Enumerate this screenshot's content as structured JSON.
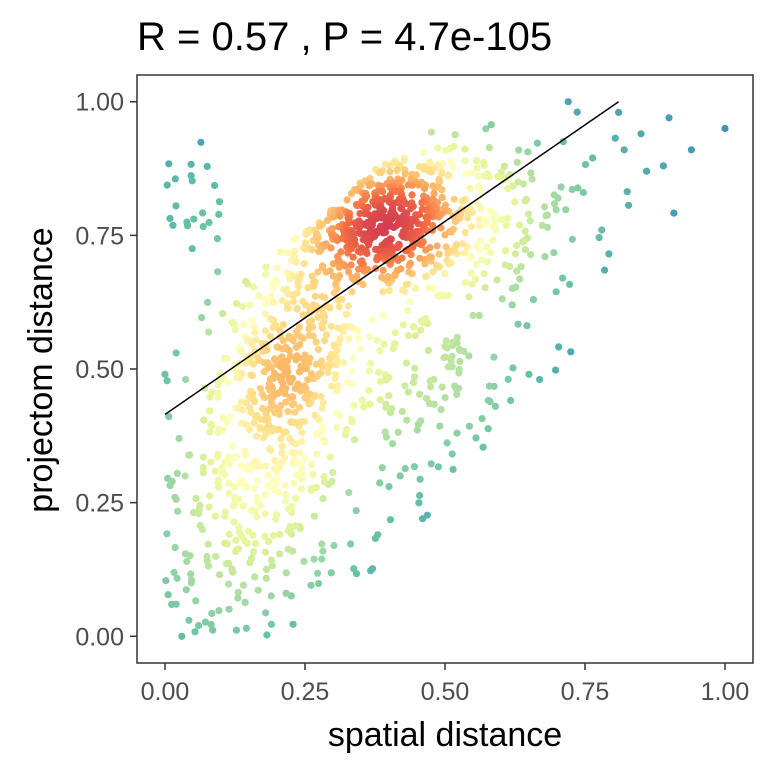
{
  "chart_data": {
    "type": "scatter",
    "title": "R = 0.57 , P = 4.7e-105",
    "xlabel": "spatial distance",
    "ylabel": "projectom distance",
    "xlim": [
      -0.05,
      1.05
    ],
    "ylim": [
      -0.05,
      1.05
    ],
    "x_ticks": [
      "0.00",
      "0.25",
      "0.50",
      "0.75",
      "1.00"
    ],
    "y_ticks": [
      "0.00",
      "0.25",
      "0.50",
      "0.75",
      "1.00"
    ],
    "grid": false,
    "color_scale": "Spectral (point density)",
    "regression_line": {
      "x": [
        0.0,
        0.81
      ],
      "y": [
        0.415,
        1.0
      ],
      "color": "#000000"
    },
    "clusters": [
      {
        "x": 0.38,
        "y": 0.78,
        "sx": 0.07,
        "sy": 0.07,
        "n": 420
      },
      {
        "x": 0.22,
        "y": 0.5,
        "sx": 0.06,
        "sy": 0.11,
        "n": 380
      },
      {
        "x": 0.2,
        "y": 0.8,
        "sx": 0.12,
        "sy": 0.07,
        "n": 170
      },
      {
        "x": 0.5,
        "y": 0.78,
        "sx": 0.11,
        "sy": 0.08,
        "n": 170
      },
      {
        "x": 0.15,
        "y": 0.3,
        "sx": 0.08,
        "sy": 0.14,
        "n": 200
      },
      {
        "x": 0.45,
        "y": 0.5,
        "sx": 0.11,
        "sy": 0.12,
        "n": 170
      },
      {
        "x": 0.65,
        "y": 0.8,
        "sx": 0.09,
        "sy": 0.1,
        "n": 70
      },
      {
        "x": 0.08,
        "y": 0.12,
        "sx": 0.06,
        "sy": 0.08,
        "n": 45
      },
      {
        "x": 0.3,
        "y": 0.18,
        "sx": 0.1,
        "sy": 0.08,
        "n": 40
      }
    ],
    "outliers": [
      {
        "x": 1.0,
        "y": 0.95
      },
      {
        "x": 0.94,
        "y": 0.91
      },
      {
        "x": 0.9,
        "y": 0.97
      },
      {
        "x": 0.89,
        "y": 0.88
      },
      {
        "x": 0.86,
        "y": 0.87
      },
      {
        "x": 0.78,
        "y": 0.76
      },
      {
        "x": 0.71,
        "y": 0.67
      },
      {
        "x": 0.65,
        "y": 0.49
      },
      {
        "x": 0.59,
        "y": 0.43
      },
      {
        "x": 0.46,
        "y": 0.22
      },
      {
        "x": 0.38,
        "y": 0.19
      },
      {
        "x": 0.03,
        "y": 0.0
      },
      {
        "x": 0.02,
        "y": 0.06
      },
      {
        "x": 0.06,
        "y": 0.02
      },
      {
        "x": 0.0,
        "y": 0.49
      },
      {
        "x": 0.02,
        "y": 0.53
      },
      {
        "x": 0.4,
        "y": 0.28
      },
      {
        "x": 0.42,
        "y": 0.3
      },
      {
        "x": 0.72,
        "y": 1.0
      },
      {
        "x": 0.81,
        "y": 0.98
      },
      {
        "x": 0.82,
        "y": 0.91
      },
      {
        "x": 0.85,
        "y": 0.94
      },
      {
        "x": 0.55,
        "y": 0.6
      },
      {
        "x": 0.62,
        "y": 0.62
      }
    ],
    "seed": 12345
  }
}
